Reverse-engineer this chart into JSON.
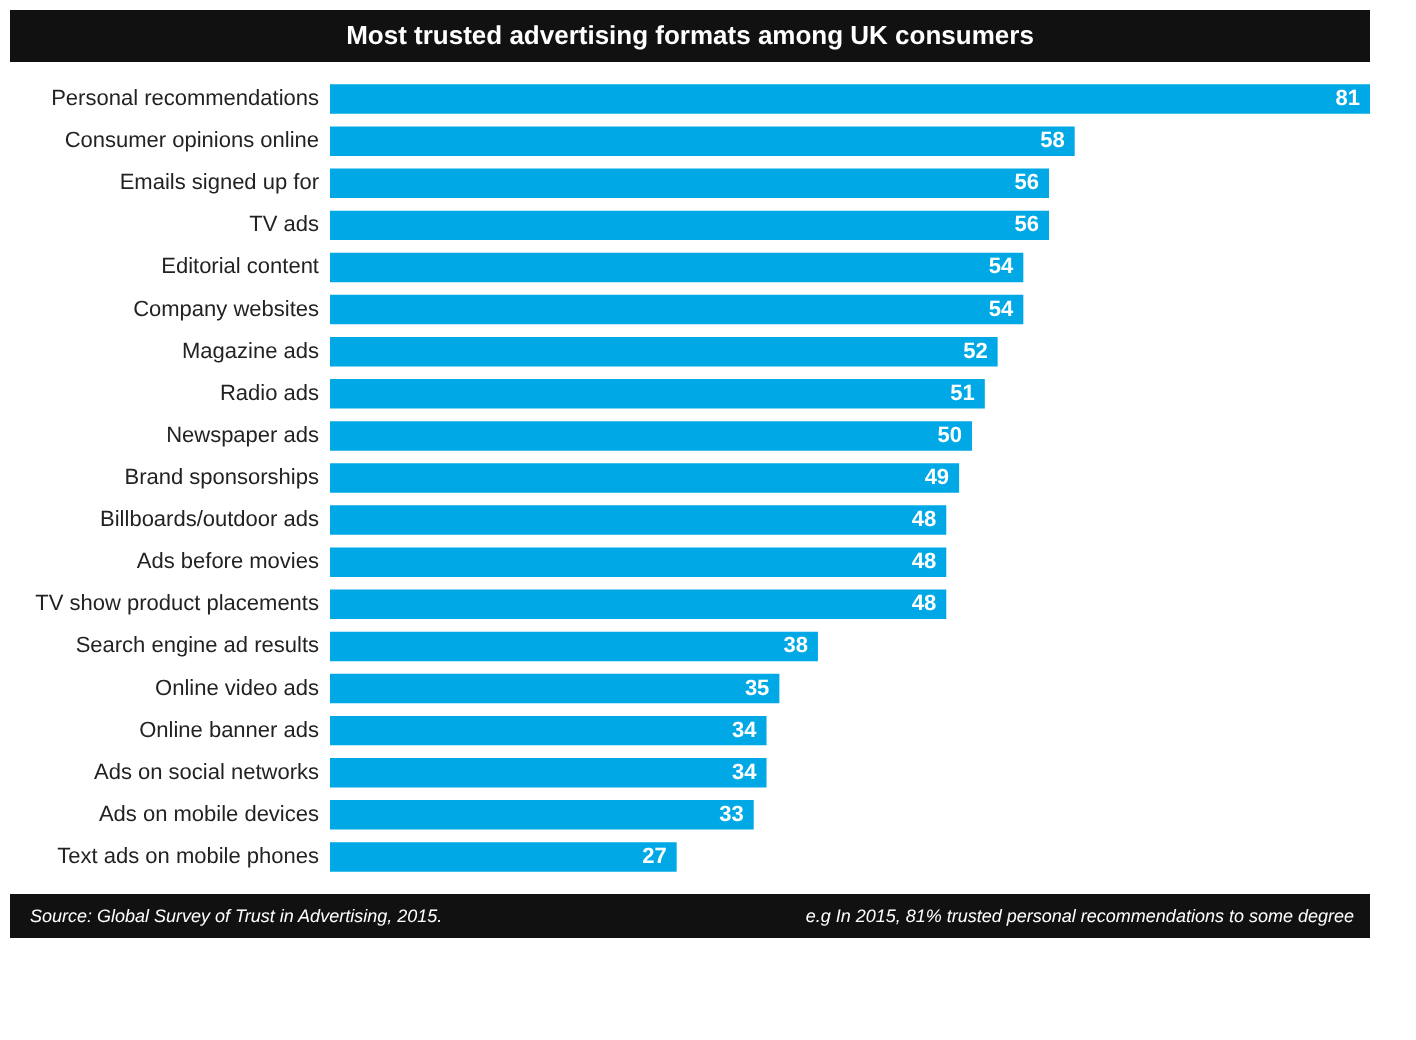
{
  "chart_data": {
    "type": "bar",
    "orientation": "horizontal",
    "title": "Most trusted advertising formats among UK consumers",
    "categories": [
      "Personal recommendations",
      "Consumer opinions online",
      "Emails signed up for",
      "TV ads",
      "Editorial content",
      "Company websites",
      "Magazine ads",
      "Radio ads",
      "Newspaper ads",
      "Brand sponsorships",
      "Billboards/outdoor ads",
      "Ads before movies",
      "TV show product placements",
      "Search engine ad results",
      "Online video ads",
      "Online banner ads",
      "Ads on social networks",
      "Ads on mobile devices",
      "Text ads on mobile phones"
    ],
    "values": [
      81,
      58,
      56,
      56,
      54,
      54,
      52,
      51,
      50,
      49,
      48,
      48,
      48,
      38,
      35,
      34,
      34,
      33,
      27
    ],
    "color": "#00a9e6",
    "xlim": [
      0,
      81
    ],
    "data_labels": true,
    "tick_labels": "y",
    "grid": false,
    "annotations": [
      "Source: Global Survey of Trust in Advertising, 2015.",
      "e.g In 2015, 81% trusted personal recommendations to some degree"
    ]
  }
}
